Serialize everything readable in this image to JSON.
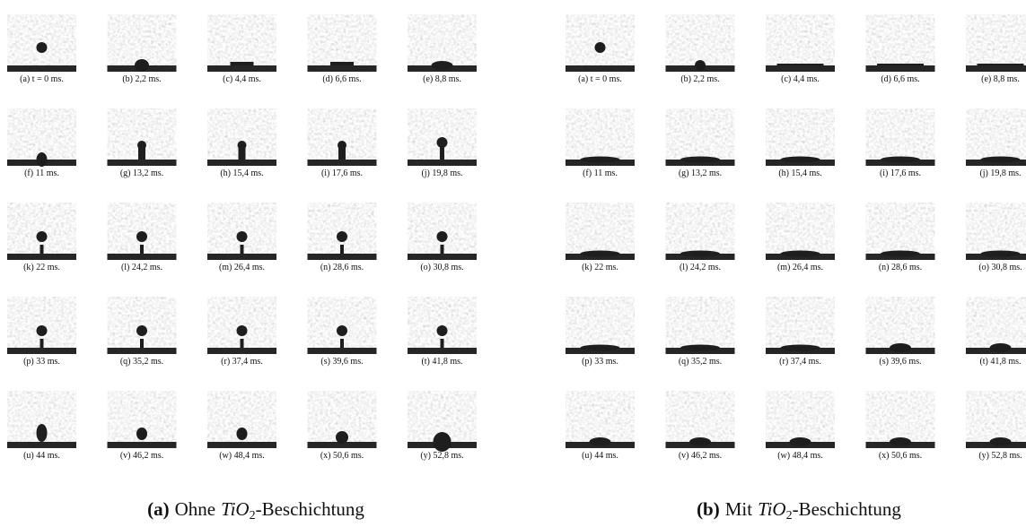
{
  "panels": [
    {
      "label": "(a)",
      "prefix": "Ohne",
      "formula": "TiO",
      "subscript": "2",
      "suffix": "-Beschichtung",
      "frames": [
        "(a) t = 0 ms.",
        "(b) 2,2 ms.",
        "(c) 4,4 ms.",
        "(d) 6,6 ms.",
        "(e) 8,8 ms.",
        "(f) 11 ms.",
        "(g) 13,2 ms.",
        "(h) 15,4 ms.",
        "(i) 17,6 ms.",
        "(j) 19,8 ms.",
        "(k) 22 ms.",
        "(l) 24,2 ms.",
        "(m) 26,4 ms.",
        "(n) 28,6 ms.",
        "(o) 30,8 ms.",
        "(p) 33 ms.",
        "(q) 35,2 ms.",
        "(r) 37,4 ms.",
        "(s) 39,6 ms.",
        "(t) 41,8 ms.",
        "(u) 44 ms.",
        "(v) 46,2 ms.",
        "(w) 48,4 ms.",
        "(x) 50,6 ms.",
        "(y) 52,8 ms."
      ]
    },
    {
      "label": "(b)",
      "prefix": "Mit",
      "formula": "TiO",
      "subscript": "2",
      "suffix": "-Beschichtung",
      "frames": [
        "(a) t = 0 ms.",
        "(b) 2,2 ms.",
        "(c) 4,4 ms.",
        "(d) 6,6 ms.",
        "(e) 8,8 ms.",
        "(f) 11 ms.",
        "(g) 13,2 ms.",
        "(h) 15,4 ms.",
        "(i) 17,6 ms.",
        "(j) 19,8 ms.",
        "(k) 22 ms.",
        "(l) 24,2 ms.",
        "(m) 26,4 ms.",
        "(n) 28,6 ms.",
        "(o) 30,8 ms.",
        "(p) 33 ms.",
        "(q) 35,2 ms.",
        "(r) 37,4 ms.",
        "(s) 39,6 ms.",
        "(t) 41,8 ms.",
        "(u) 44 ms.",
        "(v) 46,2 ms.",
        "(w) 48,4 ms.",
        "(x) 50,6 ms.",
        "(y) 52,8 ms."
      ]
    }
  ]
}
